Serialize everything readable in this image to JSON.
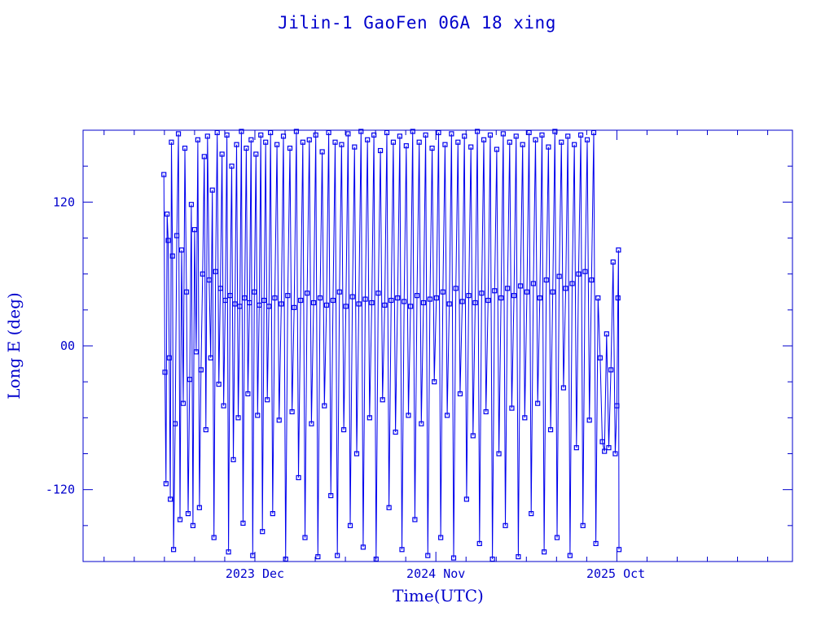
{
  "chart_data": {
    "type": "line",
    "title": "Jilin-1 GaoFen 06A 18 xing",
    "xlabel": "Time(UTC)",
    "ylabel": "Long E (deg)",
    "ylim": [
      -180,
      180
    ],
    "xlim": [
      "2023-01-16",
      "2026-08-25"
    ],
    "yticks": [
      {
        "value": 120,
        "label": "120"
      },
      {
        "value": 0,
        "label": "00"
      },
      {
        "value": -120,
        "label": "-120"
      }
    ],
    "xticks": [
      {
        "value": "2023-12-01",
        "label": "2023 Dec"
      },
      {
        "value": "2024-11-01",
        "label": "2024 Nov"
      },
      {
        "value": "2025-10-01",
        "label": "2025 Oct"
      }
    ],
    "grid": false,
    "markers": "open-square",
    "color": "#0000ee",
    "points": [
      [
        "2023-06-15",
        143
      ],
      [
        "2023-06-17",
        -22
      ],
      [
        "2023-06-19",
        -115
      ],
      [
        "2023-06-21",
        110
      ],
      [
        "2023-06-23",
        88
      ],
      [
        "2023-06-25",
        -10
      ],
      [
        "2023-06-27",
        -128
      ],
      [
        "2023-06-29",
        170
      ],
      [
        "2023-07-01",
        75
      ],
      [
        "2023-07-03",
        -170
      ],
      [
        "2023-07-06",
        -65
      ],
      [
        "2023-07-09",
        92
      ],
      [
        "2023-07-12",
        177
      ],
      [
        "2023-07-15",
        -145
      ],
      [
        "2023-07-18",
        80
      ],
      [
        "2023-07-21",
        -48
      ],
      [
        "2023-07-24",
        165
      ],
      [
        "2023-07-27",
        45
      ],
      [
        "2023-07-30",
        -140
      ],
      [
        "2023-08-02",
        -28
      ],
      [
        "2023-08-05",
        118
      ],
      [
        "2023-08-08",
        -150
      ],
      [
        "2023-08-11",
        97
      ],
      [
        "2023-08-14",
        -5
      ],
      [
        "2023-08-17",
        172
      ],
      [
        "2023-08-20",
        -135
      ],
      [
        "2023-08-23",
        -20
      ],
      [
        "2023-08-26",
        60
      ],
      [
        "2023-08-29",
        158
      ],
      [
        "2023-09-01",
        -70
      ],
      [
        "2023-09-04",
        175
      ],
      [
        "2023-09-07",
        55
      ],
      [
        "2023-09-10",
        -10
      ],
      [
        "2023-09-13",
        130
      ],
      [
        "2023-09-16",
        -160
      ],
      [
        "2023-09-19",
        62
      ],
      [
        "2023-09-22",
        178
      ],
      [
        "2023-09-25",
        -32
      ],
      [
        "2023-09-28",
        48
      ],
      [
        "2023-10-01",
        160
      ],
      [
        "2023-10-04",
        -50
      ],
      [
        "2023-10-07",
        38
      ],
      [
        "2023-10-10",
        176
      ],
      [
        "2023-10-13",
        -172
      ],
      [
        "2023-10-16",
        42
      ],
      [
        "2023-10-19",
        150
      ],
      [
        "2023-10-22",
        -95
      ],
      [
        "2023-10-25",
        35
      ],
      [
        "2023-10-28",
        168
      ],
      [
        "2023-10-31",
        -60
      ],
      [
        "2023-11-03",
        33
      ],
      [
        "2023-11-06",
        179
      ],
      [
        "2023-11-09",
        -148
      ],
      [
        "2023-11-12",
        40
      ],
      [
        "2023-11-15",
        165
      ],
      [
        "2023-11-18",
        -40
      ],
      [
        "2023-11-21",
        36
      ],
      [
        "2023-11-24",
        172
      ],
      [
        "2023-11-27",
        -175
      ],
      [
        "2023-11-30",
        45
      ],
      [
        "2023-12-03",
        160
      ],
      [
        "2023-12-06",
        -58
      ],
      [
        "2023-12-09",
        34
      ],
      [
        "2023-12-12",
        176
      ],
      [
        "2023-12-15",
        -155
      ],
      [
        "2023-12-18",
        38
      ],
      [
        "2023-12-21",
        170
      ],
      [
        "2023-12-24",
        -45
      ],
      [
        "2023-12-27",
        33
      ],
      [
        "2023-12-30",
        178
      ],
      [
        "2024-01-03",
        -140
      ],
      [
        "2024-01-07",
        40
      ],
      [
        "2024-01-11",
        168
      ],
      [
        "2024-01-15",
        -62
      ],
      [
        "2024-01-19",
        35
      ],
      [
        "2024-01-23",
        175
      ],
      [
        "2024-01-27",
        -178
      ],
      [
        "2024-01-31",
        42
      ],
      [
        "2024-02-04",
        165
      ],
      [
        "2024-02-08",
        -55
      ],
      [
        "2024-02-12",
        32
      ],
      [
        "2024-02-16",
        179
      ],
      [
        "2024-02-20",
        -110
      ],
      [
        "2024-02-24",
        38
      ],
      [
        "2024-02-28",
        170
      ],
      [
        "2024-03-03",
        -160
      ],
      [
        "2024-03-07",
        44
      ],
      [
        "2024-03-11",
        172
      ],
      [
        "2024-03-15",
        -65
      ],
      [
        "2024-03-19",
        36
      ],
      [
        "2024-03-23",
        176
      ],
      [
        "2024-03-27",
        -176
      ],
      [
        "2024-03-31",
        40
      ],
      [
        "2024-04-04",
        162
      ],
      [
        "2024-04-08",
        -50
      ],
      [
        "2024-04-12",
        34
      ],
      [
        "2024-04-16",
        178
      ],
      [
        "2024-04-20",
        -125
      ],
      [
        "2024-04-24",
        38
      ],
      [
        "2024-04-28",
        170
      ],
      [
        "2024-05-02",
        -175
      ],
      [
        "2024-05-06",
        45
      ],
      [
        "2024-05-10",
        168
      ],
      [
        "2024-05-14",
        -70
      ],
      [
        "2024-05-18",
        33
      ],
      [
        "2024-05-22",
        177
      ],
      [
        "2024-05-26",
        -150
      ],
      [
        "2024-05-30",
        41
      ],
      [
        "2024-06-03",
        166
      ],
      [
        "2024-06-07",
        -90
      ],
      [
        "2024-06-11",
        35
      ],
      [
        "2024-06-15",
        179
      ],
      [
        "2024-06-19",
        -168
      ],
      [
        "2024-06-23",
        39
      ],
      [
        "2024-06-27",
        172
      ],
      [
        "2024-07-01",
        -60
      ],
      [
        "2024-07-05",
        36
      ],
      [
        "2024-07-09",
        176
      ],
      [
        "2024-07-13",
        -178
      ],
      [
        "2024-07-17",
        44
      ],
      [
        "2024-07-21",
        163
      ],
      [
        "2024-07-25",
        -45
      ],
      [
        "2024-07-29",
        34
      ],
      [
        "2024-08-02",
        178
      ],
      [
        "2024-08-06",
        -135
      ],
      [
        "2024-08-10",
        38
      ],
      [
        "2024-08-14",
        170
      ],
      [
        "2024-08-18",
        -72
      ],
      [
        "2024-08-22",
        40
      ],
      [
        "2024-08-26",
        175
      ],
      [
        "2024-08-30",
        -170
      ],
      [
        "2024-09-03",
        37
      ],
      [
        "2024-09-07",
        167
      ],
      [
        "2024-09-11",
        -58
      ],
      [
        "2024-09-15",
        33
      ],
      [
        "2024-09-19",
        179
      ],
      [
        "2024-09-23",
        -145
      ],
      [
        "2024-09-27",
        42
      ],
      [
        "2024-10-01",
        170
      ],
      [
        "2024-10-05",
        -65
      ],
      [
        "2024-10-09",
        36
      ],
      [
        "2024-10-13",
        176
      ],
      [
        "2024-10-17",
        -175
      ],
      [
        "2024-10-21",
        39
      ],
      [
        "2024-10-25",
        165
      ],
      [
        "2024-10-29",
        -30
      ],
      [
        "2024-11-02",
        40
      ],
      [
        "2024-11-06",
        178
      ],
      [
        "2024-11-10",
        -160
      ],
      [
        "2024-11-14",
        45
      ],
      [
        "2024-11-18",
        168
      ],
      [
        "2024-11-22",
        -58
      ],
      [
        "2024-11-26",
        35
      ],
      [
        "2024-11-30",
        177
      ],
      [
        "2024-12-04",
        -177
      ],
      [
        "2024-12-08",
        48
      ],
      [
        "2024-12-12",
        170
      ],
      [
        "2024-12-16",
        -40
      ],
      [
        "2024-12-20",
        37
      ],
      [
        "2024-12-24",
        175
      ],
      [
        "2024-12-28",
        -128
      ],
      [
        "2025-01-01",
        42
      ],
      [
        "2025-01-05",
        166
      ],
      [
        "2025-01-09",
        -75
      ],
      [
        "2025-01-13",
        36
      ],
      [
        "2025-01-17",
        179
      ],
      [
        "2025-01-21",
        -165
      ],
      [
        "2025-01-25",
        44
      ],
      [
        "2025-01-29",
        172
      ],
      [
        "2025-02-02",
        -55
      ],
      [
        "2025-02-06",
        38
      ],
      [
        "2025-02-10",
        176
      ],
      [
        "2025-02-14",
        -178
      ],
      [
        "2025-02-18",
        46
      ],
      [
        "2025-02-22",
        164
      ],
      [
        "2025-02-26",
        -90
      ],
      [
        "2025-03-02",
        40
      ],
      [
        "2025-03-06",
        177
      ],
      [
        "2025-03-10",
        -150
      ],
      [
        "2025-03-14",
        48
      ],
      [
        "2025-03-18",
        170
      ],
      [
        "2025-03-22",
        -52
      ],
      [
        "2025-03-26",
        42
      ],
      [
        "2025-03-30",
        175
      ],
      [
        "2025-04-03",
        -176
      ],
      [
        "2025-04-07",
        50
      ],
      [
        "2025-04-11",
        168
      ],
      [
        "2025-04-15",
        -60
      ],
      [
        "2025-04-19",
        45
      ],
      [
        "2025-04-23",
        178
      ],
      [
        "2025-04-27",
        -140
      ],
      [
        "2025-05-01",
        52
      ],
      [
        "2025-05-05",
        172
      ],
      [
        "2025-05-09",
        -48
      ],
      [
        "2025-05-13",
        40
      ],
      [
        "2025-05-17",
        176
      ],
      [
        "2025-05-21",
        -172
      ],
      [
        "2025-05-25",
        55
      ],
      [
        "2025-05-29",
        166
      ],
      [
        "2025-06-02",
        -70
      ],
      [
        "2025-06-06",
        45
      ],
      [
        "2025-06-10",
        179
      ],
      [
        "2025-06-14",
        -160
      ],
      [
        "2025-06-18",
        58
      ],
      [
        "2025-06-22",
        170
      ],
      [
        "2025-06-26",
        -35
      ],
      [
        "2025-06-30",
        48
      ],
      [
        "2025-07-04",
        175
      ],
      [
        "2025-07-08",
        -175
      ],
      [
        "2025-07-12",
        52
      ],
      [
        "2025-07-16",
        168
      ],
      [
        "2025-07-20",
        -85
      ],
      [
        "2025-07-24",
        60
      ],
      [
        "2025-07-28",
        176
      ],
      [
        "2025-08-01",
        -150
      ],
      [
        "2025-08-05",
        62
      ],
      [
        "2025-08-09",
        172
      ],
      [
        "2025-08-13",
        -62
      ],
      [
        "2025-08-17",
        55
      ],
      [
        "2025-08-21",
        178
      ],
      [
        "2025-08-25",
        -165
      ],
      [
        "2025-08-29",
        40
      ],
      [
        "2025-09-02",
        -10
      ],
      [
        "2025-09-06",
        -80
      ],
      [
        "2025-09-10",
        -88
      ],
      [
        "2025-09-14",
        10
      ],
      [
        "2025-09-18",
        -85
      ],
      [
        "2025-09-22",
        -20
      ],
      [
        "2025-09-26",
        70
      ],
      [
        "2025-09-30",
        -90
      ],
      [
        "2025-10-03",
        -50
      ],
      [
        "2025-10-05",
        40
      ],
      [
        "2025-10-06",
        80
      ],
      [
        "2025-10-07",
        -170
      ]
    ]
  }
}
